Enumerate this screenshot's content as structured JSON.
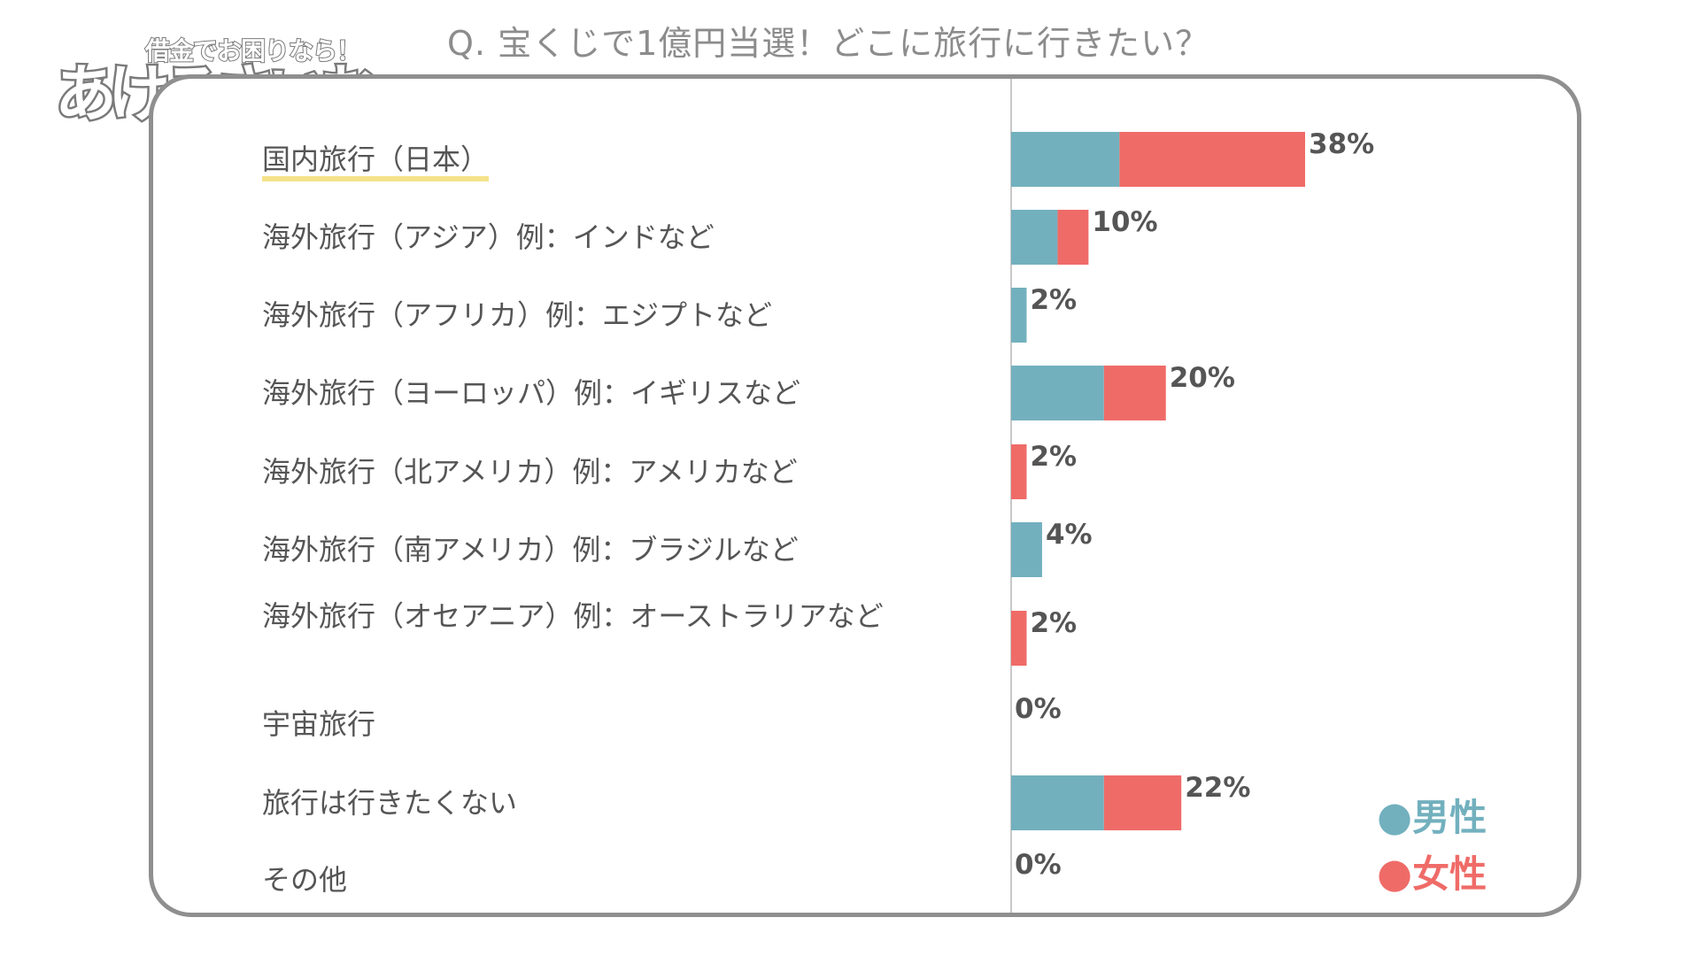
{
  "logo": {
    "tagline": "借金でお困りなら！",
    "name": "あけるさいむ"
  },
  "chart_data": {
    "type": "bar",
    "orientation": "horizontal",
    "stacked": true,
    "title": "Q. 宝くじで1億円当選！どこに旅行に行きたい？",
    "categories": [
      "国内旅行（日本）",
      "海外旅行（アジア）例：インドなど",
      "海外旅行（アフリカ）例：エジプトなど",
      "海外旅行（ヨーロッパ）例：イギリスなど",
      "海外旅行（北アメリカ）例：アメリカなど",
      "海外旅行（南アメリカ）例：ブラジルなど",
      "海外旅行（オセアニア）例：オーストラリアなど",
      "宇宙旅行",
      "旅行は行きたくない",
      "その他"
    ],
    "totals": [
      38,
      10,
      2,
      20,
      2,
      4,
      2,
      0,
      22,
      0
    ],
    "total_labels": [
      "38%",
      "10%",
      "2%",
      "20%",
      "2%",
      "4%",
      "2%",
      "0%",
      "22%",
      "0%"
    ],
    "series": [
      {
        "name": "男性",
        "color": "#72b0be",
        "values": [
          14,
          6,
          2,
          12,
          0,
          4,
          0,
          0,
          12,
          0
        ]
      },
      {
        "name": "女性",
        "color": "#ef6b68",
        "values": [
          24,
          4,
          0,
          8,
          2,
          0,
          2,
          0,
          10,
          0
        ]
      }
    ],
    "xlim": [
      0,
      38
    ],
    "grid": false,
    "legend_position": "bottom-right",
    "legend_marker": "●"
  }
}
